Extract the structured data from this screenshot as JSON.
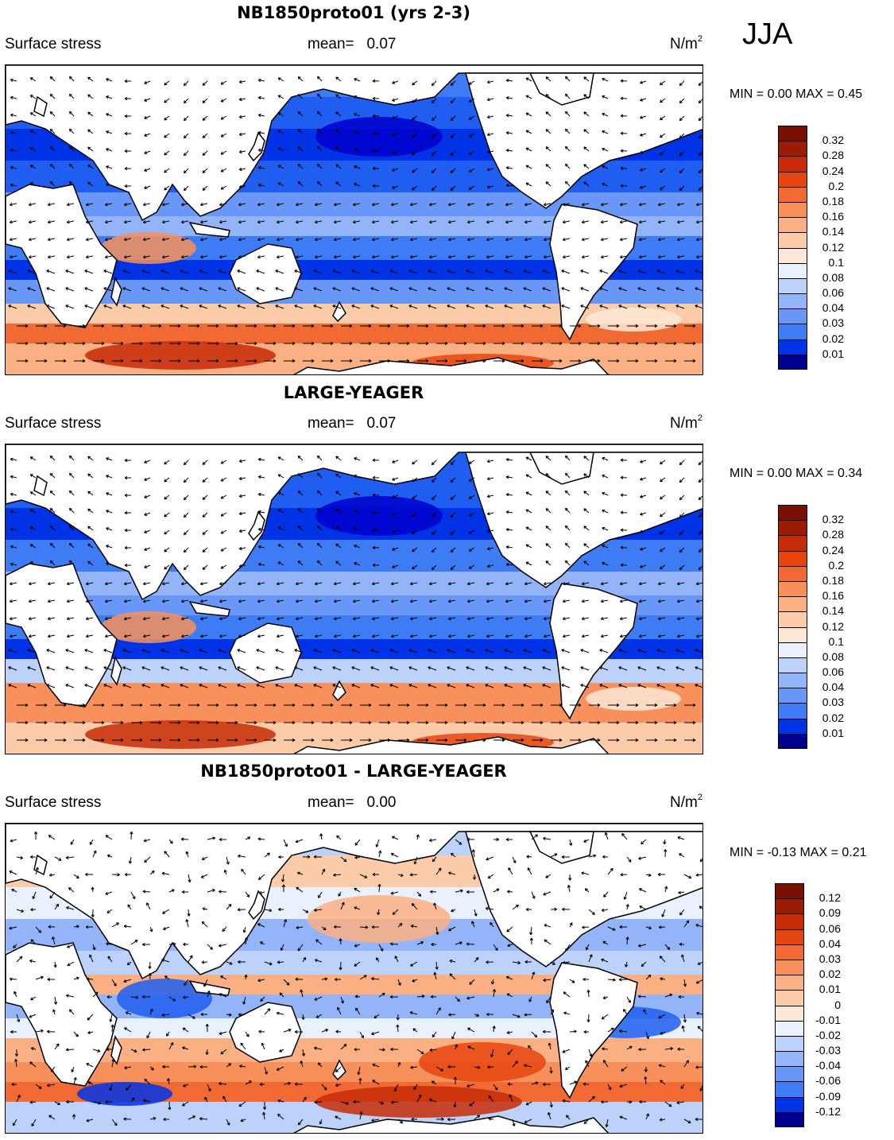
{
  "season": "JJA",
  "blue_red_scale": [
    "#00008f",
    "#0000cd",
    "#0033e6",
    "#1f5ef0",
    "#3d7cf5",
    "#6897f7",
    "#93b4f9",
    "#bdd2fb",
    "#e8f1fd",
    "#fde7d6",
    "#fcccaa",
    "#fbb083",
    "#f7905b",
    "#f26a33",
    "#e6450f",
    "#c52b07",
    "#9b1b05",
    "#781003"
  ],
  "panels": [
    {
      "title": "NB1850proto01 (yrs 2-3)",
      "variable": "Surface stress",
      "mean_label": "mean=",
      "mean_value": "0.07",
      "units": "N/m",
      "units_sup": "2",
      "stats": "MIN =   0.00 MAX =   0.45",
      "colorbar_ticks": [
        "0.32",
        "0.28",
        "0.24",
        "0.2",
        "0.18",
        "0.16",
        "0.14",
        "0.12",
        "0.1",
        "0.08",
        "0.06",
        "0.04",
        "0.03",
        "0.02",
        "0.01"
      ]
    },
    {
      "title": "LARGE-YEAGER",
      "variable": "Surface stress",
      "mean_label": "mean=",
      "mean_value": "0.07",
      "units": "N/m",
      "units_sup": "2",
      "stats": "MIN =   0.00 MAX =   0.34",
      "colorbar_ticks": [
        "0.32",
        "0.28",
        "0.24",
        "0.2",
        "0.18",
        "0.16",
        "0.14",
        "0.12",
        "0.1",
        "0.08",
        "0.06",
        "0.04",
        "0.03",
        "0.02",
        "0.01"
      ]
    },
    {
      "title": "NB1850proto01 - LARGE-YEAGER",
      "variable": "Surface stress",
      "mean_label": "mean=",
      "mean_value": "0.00",
      "units": "N/m",
      "units_sup": "2",
      "stats": "MIN =  -0.13 MAX =   0.21",
      "colorbar_ticks": [
        "0.12",
        "0.09",
        "0.06",
        "0.04",
        "0.03",
        "0.02",
        "0.01",
        "0",
        "-0.01",
        "-0.02",
        "-0.03",
        "-0.04",
        "-0.06",
        "-0.09",
        "-0.12"
      ]
    }
  ]
}
